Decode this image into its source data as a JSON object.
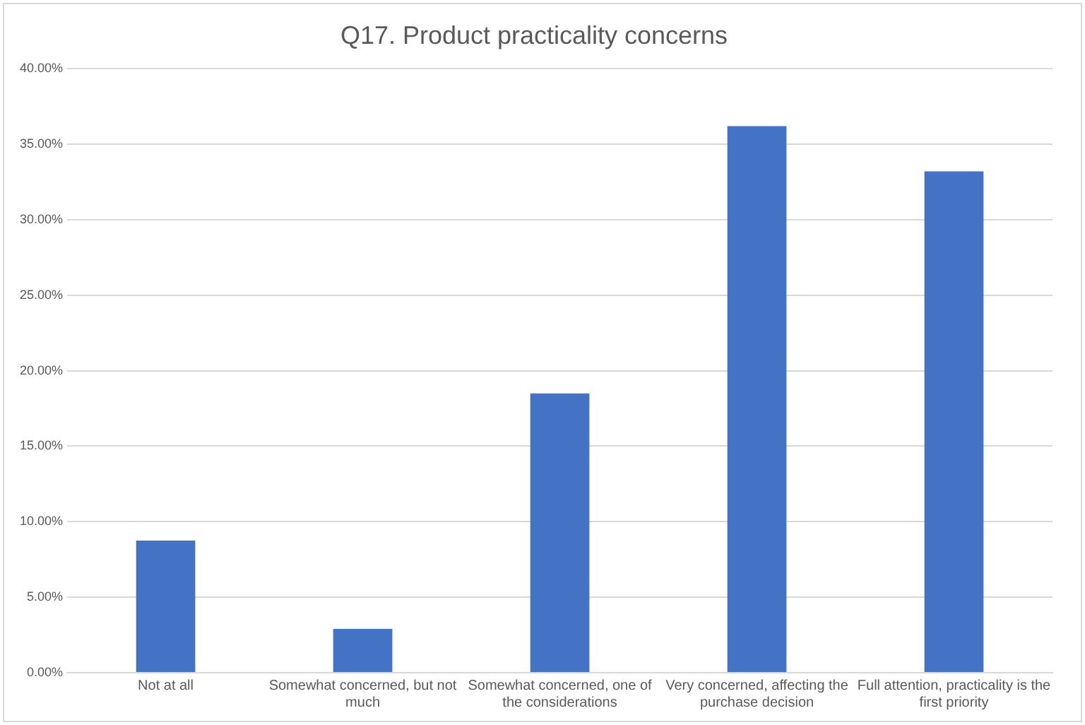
{
  "chart_data": {
    "type": "bar",
    "title": "Q17. Product practicality concerns",
    "categories": [
      "Not at all",
      "Somewhat concerned, but not much",
      "Somewhat concerned, one of the considerations",
      "Very concerned, affecting the purchase decision",
      "Full attention, practicality is the first priority"
    ],
    "values": [
      8.75,
      2.9,
      18.5,
      36.2,
      33.2
    ],
    "color": "#4472c4",
    "ylim": [
      0,
      40
    ],
    "yticks": [
      {
        "value": 0,
        "label": "0.00%"
      },
      {
        "value": 5,
        "label": "5.00%"
      },
      {
        "value": 10,
        "label": "10.00%"
      },
      {
        "value": 15,
        "label": "15.00%"
      },
      {
        "value": 20,
        "label": "20.00%"
      },
      {
        "value": 25,
        "label": "25.00%"
      },
      {
        "value": 30,
        "label": "30.00%"
      },
      {
        "value": 35,
        "label": "35.00%"
      },
      {
        "value": 40,
        "label": "40.00%"
      }
    ],
    "grid": "y"
  }
}
